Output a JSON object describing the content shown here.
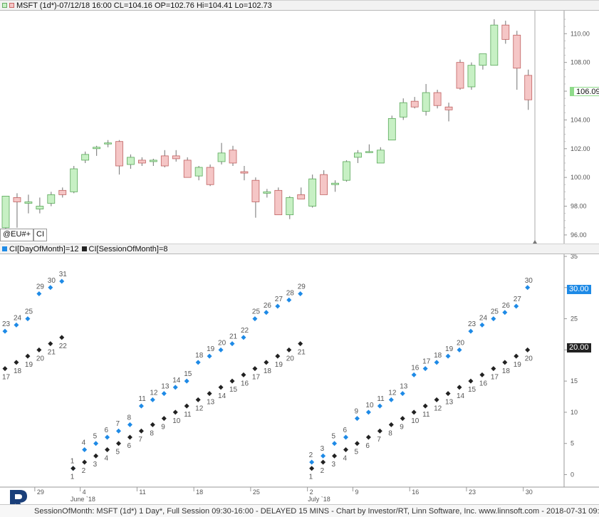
{
  "top_pane": {
    "header_text": "MSFT (1d*)-07/12/18 16:00 CL=104.16 OP=102.76 Hi=104.41 Lo=102.73",
    "last_price_tag": "106.09",
    "symbol_input": "@EU#+",
    "ci_button": "CI"
  },
  "bottom_pane": {
    "header_series1": "CI[DayOfMonth]=12",
    "header_series2": "CI[SessionOfMonth]=8",
    "tag1": "30.00",
    "tag2": "20.00"
  },
  "footer": {
    "status_text": "SessionOfMonth: MSFT (1d*) 1 Day*, Full Session 09:30-16:00 - DELAYED 15 MINS - Chart by Investor/RT, Linn Software, Inc. www.linnsoft.com - 2018-07-31 09:3"
  },
  "colors": {
    "up_candle": "#c7f0c4",
    "down_candle": "#f5c6c6",
    "blue_series": "#1e8ae6",
    "black_series": "#222222",
    "last_price_green": "#8fdb8a"
  },
  "chart_data": [
    {
      "type": "candlestick",
      "title": "MSFT (1d*)",
      "ylim": [
        95.5,
        111.5
      ],
      "y_ticks": [
        "96.00",
        "98.00",
        "100.00",
        "102.00",
        "104.00",
        "106.00",
        "108.00",
        "110.00"
      ],
      "candles": [
        {
          "o": 96.5,
          "h": 98.7,
          "l": 96.0,
          "c": 98.7
        },
        {
          "o": 98.6,
          "h": 98.9,
          "l": 96.5,
          "c": 98.3
        },
        {
          "o": 98.2,
          "h": 98.8,
          "l": 97.5,
          "c": 98.3
        },
        {
          "o": 97.8,
          "h": 98.6,
          "l": 97.5,
          "c": 98.0
        },
        {
          "o": 98.2,
          "h": 99.0,
          "l": 98.0,
          "c": 98.8
        },
        {
          "o": 99.1,
          "h": 99.3,
          "l": 98.6,
          "c": 98.8
        },
        {
          "o": 99.0,
          "h": 100.8,
          "l": 98.9,
          "c": 100.6
        },
        {
          "o": 101.2,
          "h": 101.8,
          "l": 101.0,
          "c": 101.6
        },
        {
          "o": 102.0,
          "h": 102.2,
          "l": 101.5,
          "c": 102.1
        },
        {
          "o": 102.4,
          "h": 102.6,
          "l": 102.1,
          "c": 102.4
        },
        {
          "o": 102.5,
          "h": 102.6,
          "l": 100.2,
          "c": 100.8
        },
        {
          "o": 100.9,
          "h": 101.6,
          "l": 100.6,
          "c": 101.4
        },
        {
          "o": 101.2,
          "h": 101.4,
          "l": 100.8,
          "c": 101.0
        },
        {
          "o": 101.1,
          "h": 101.3,
          "l": 100.8,
          "c": 101.2
        },
        {
          "o": 101.5,
          "h": 101.9,
          "l": 100.7,
          "c": 100.8
        },
        {
          "o": 101.5,
          "h": 101.9,
          "l": 101.1,
          "c": 101.3
        },
        {
          "o": 101.2,
          "h": 101.4,
          "l": 100.0,
          "c": 100.0
        },
        {
          "o": 100.1,
          "h": 100.8,
          "l": 99.8,
          "c": 100.7
        },
        {
          "o": 100.7,
          "h": 100.9,
          "l": 99.4,
          "c": 99.5
        },
        {
          "o": 101.1,
          "h": 102.4,
          "l": 100.9,
          "c": 101.7
        },
        {
          "o": 101.9,
          "h": 102.2,
          "l": 100.8,
          "c": 101.0
        },
        {
          "o": 100.4,
          "h": 100.8,
          "l": 99.8,
          "c": 100.3
        },
        {
          "o": 99.8,
          "h": 100.0,
          "l": 97.2,
          "c": 98.3
        },
        {
          "o": 98.9,
          "h": 99.2,
          "l": 98.6,
          "c": 99.0
        },
        {
          "o": 99.1,
          "h": 99.3,
          "l": 97.4,
          "c": 97.4
        },
        {
          "o": 97.4,
          "h": 98.7,
          "l": 97.1,
          "c": 98.6
        },
        {
          "o": 98.8,
          "h": 99.3,
          "l": 98.5,
          "c": 98.5
        },
        {
          "o": 98.0,
          "h": 100.2,
          "l": 97.9,
          "c": 99.9
        },
        {
          "o": 100.2,
          "h": 100.5,
          "l": 98.8,
          "c": 98.8
        },
        {
          "o": 99.5,
          "h": 99.8,
          "l": 99.0,
          "c": 99.6
        },
        {
          "o": 99.8,
          "h": 101.2,
          "l": 99.7,
          "c": 101.1
        },
        {
          "o": 101.4,
          "h": 101.9,
          "l": 101.0,
          "c": 101.7
        },
        {
          "o": 101.8,
          "h": 102.3,
          "l": 101.7,
          "c": 101.8
        },
        {
          "o": 101.0,
          "h": 102.1,
          "l": 101.0,
          "c": 101.9
        },
        {
          "o": 102.6,
          "h": 104.3,
          "l": 102.6,
          "c": 104.1
        },
        {
          "o": 104.2,
          "h": 105.5,
          "l": 104.0,
          "c": 105.2
        },
        {
          "o": 105.3,
          "h": 105.6,
          "l": 104.8,
          "c": 104.9
        },
        {
          "o": 104.6,
          "h": 106.5,
          "l": 104.3,
          "c": 105.9
        },
        {
          "o": 105.9,
          "h": 106.1,
          "l": 104.8,
          "c": 105.0
        },
        {
          "o": 104.9,
          "h": 105.2,
          "l": 103.9,
          "c": 104.7
        },
        {
          "o": 108.0,
          "h": 108.2,
          "l": 106.1,
          "c": 106.2
        },
        {
          "o": 106.3,
          "h": 108.0,
          "l": 106.1,
          "c": 107.8
        },
        {
          "o": 107.8,
          "h": 108.6,
          "l": 107.5,
          "c": 108.6
        },
        {
          "o": 107.8,
          "h": 111.0,
          "l": 107.8,
          "c": 110.6
        },
        {
          "o": 110.6,
          "h": 110.9,
          "l": 109.3,
          "c": 109.6
        },
        {
          "o": 109.9,
          "h": 110.2,
          "l": 106.1,
          "c": 107.6
        },
        {
          "o": 107.1,
          "h": 107.5,
          "l": 104.7,
          "c": 105.4
        }
      ],
      "last_close": 106.09
    },
    {
      "type": "scatter",
      "title": "CI",
      "ylim": [
        -2,
        35
      ],
      "y_ticks": [
        "0",
        "5",
        "10",
        "15",
        "20",
        "25",
        "30",
        "35"
      ],
      "x_date_labels": [
        "29",
        "4",
        "June `18",
        "11",
        "18",
        "25",
        "2",
        "July `18",
        "9",
        "16",
        "23",
        "30"
      ],
      "series": [
        {
          "name": "CI[DayOfMonth]",
          "values": [
            23,
            24,
            25,
            29,
            30,
            31,
            1,
            4,
            5,
            6,
            7,
            8,
            11,
            12,
            13,
            14,
            15,
            18,
            19,
            20,
            21,
            22,
            25,
            26,
            27,
            28,
            29,
            2,
            3,
            5,
            6,
            9,
            10,
            11,
            12,
            13,
            16,
            17,
            18,
            19,
            20,
            23,
            24,
            25,
            26,
            27,
            30
          ]
        },
        {
          "name": "CI[SessionOfMonth]",
          "values": [
            17,
            18,
            19,
            20,
            21,
            22,
            1,
            2,
            3,
            4,
            5,
            6,
            7,
            8,
            9,
            10,
            11,
            12,
            13,
            14,
            15,
            16,
            17,
            18,
            19,
            20,
            21,
            1,
            2,
            3,
            4,
            5,
            6,
            7,
            8,
            9,
            10,
            11,
            12,
            13,
            14,
            15,
            16,
            17,
            18,
            19,
            20
          ]
        }
      ]
    }
  ]
}
